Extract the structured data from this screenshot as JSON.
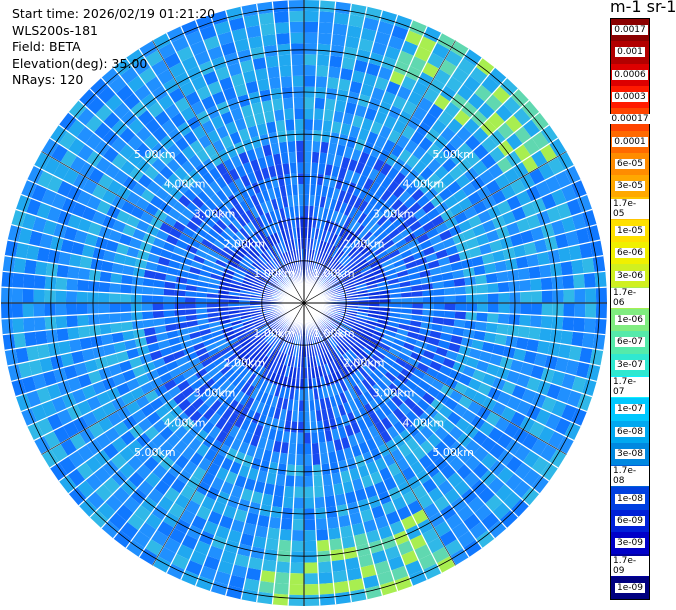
{
  "plot_info": {
    "start_time": "Start time: 2026/02/19 01:21:20",
    "device": "WLS200s-181",
    "field": "Field: BETA",
    "elevation": "Elevation(deg): 35.00",
    "nrays": "NRays: 120"
  },
  "colorbar": {
    "unit_label": "m-1 sr-1",
    "levels": [
      {
        "label": "0.0017",
        "color": "#8b0000"
      },
      {
        "label": "0.001",
        "color": "#b20000"
      },
      {
        "label": "0.0006",
        "color": "#dd0000"
      },
      {
        "label": "0.0003",
        "color": "#ff1a00"
      },
      {
        "label": "0.00017",
        "color": "#ff4400"
      },
      {
        "label": "0.0001",
        "color": "#ff6a00"
      },
      {
        "label": "6e-05",
        "color": "#ff8c00"
      },
      {
        "label": "3e-05",
        "color": "#ffa800"
      },
      {
        "label": "1.7e-05",
        "color": "#ffc400"
      },
      {
        "label": "1e-05",
        "color": "#ffe000"
      },
      {
        "label": "6e-06",
        "color": "#f0f000"
      },
      {
        "label": "3e-06",
        "color": "#d0f020"
      },
      {
        "label": "1.7e-06",
        "color": "#a8ee50"
      },
      {
        "label": "1e-06",
        "color": "#80ec80"
      },
      {
        "label": "6e-07",
        "color": "#55eaaa"
      },
      {
        "label": "3e-07",
        "color": "#30e8d0"
      },
      {
        "label": "1.7e-07",
        "color": "#10f0ff"
      },
      {
        "label": "1e-07",
        "color": "#00c8ff"
      },
      {
        "label": "6e-08",
        "color": "#00a8f0"
      },
      {
        "label": "3e-08",
        "color": "#0088e0"
      },
      {
        "label": "1.7e-08",
        "color": "#0060d8"
      },
      {
        "label": "1e-08",
        "color": "#0040e0"
      },
      {
        "label": "6e-09",
        "color": "#0020d8"
      },
      {
        "label": "3e-09",
        "color": "#0000c8"
      },
      {
        "label": "1.7e-09",
        "color": "#0000a0"
      },
      {
        "label": "1e-09",
        "color": "#000080"
      }
    ]
  },
  "range_rings": [
    {
      "label": "1.00km"
    },
    {
      "label": "2.00km"
    },
    {
      "label": "3.00km"
    },
    {
      "label": "4.00km"
    },
    {
      "label": "5.00km"
    }
  ]
}
